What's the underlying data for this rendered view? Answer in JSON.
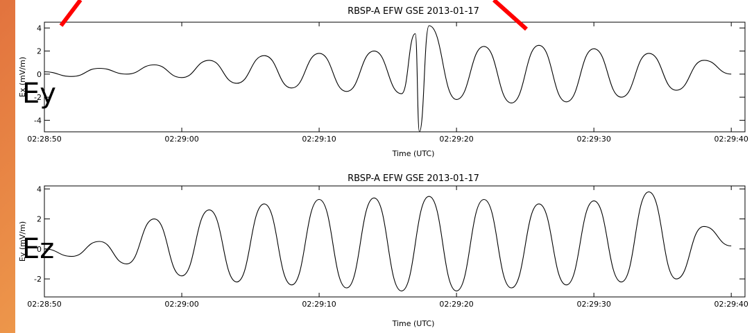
{
  "chart_data": [
    {
      "type": "line",
      "title": "RBSP-A EFW GSE 2013-01-17",
      "xlabel": "Time (UTC)",
      "ylabel": "Ex (mV/m)",
      "overlay_label": "Ey",
      "x_tick_labels": [
        "02:28:50",
        "02:29:00",
        "02:29:10",
        "02:29:20",
        "02:29:30",
        "02:29:40"
      ],
      "ylim": [
        -5,
        4.5
      ],
      "y_ticks": [
        -4,
        -2,
        0,
        2,
        4
      ],
      "series": [
        {
          "x": [
            "02:28:50",
            "02:28:52",
            "02:28:54",
            "02:28:56",
            "02:28:58",
            "02:29:00",
            "02:29:02",
            "02:29:04",
            "02:29:06",
            "02:29:08",
            "02:29:10",
            "02:29:12",
            "02:29:14",
            "02:29:16",
            "02:29:17",
            "02:29:17.3",
            "02:29:18",
            "02:29:20",
            "02:29:22",
            "02:29:24",
            "02:29:26",
            "02:29:28",
            "02:29:30",
            "02:29:32",
            "02:29:34",
            "02:29:36",
            "02:29:38",
            "02:29:40"
          ],
          "y": [
            0.2,
            -0.2,
            0.5,
            0.0,
            0.8,
            -0.3,
            1.2,
            -0.8,
            1.6,
            -1.2,
            1.8,
            -1.5,
            2.0,
            -1.7,
            3.5,
            -5.0,
            4.2,
            -2.2,
            2.4,
            -2.5,
            2.5,
            -2.4,
            2.2,
            -2.0,
            1.8,
            -1.4,
            1.2,
            0.0
          ]
        }
      ]
    },
    {
      "type": "line",
      "title": "RBSP-A EFW GSE 2013-01-17",
      "xlabel": "Time (UTC)",
      "ylabel": "Ey (mV/m)",
      "overlay_label": "Ez",
      "x_tick_labels": [
        "02:28:50",
        "02:29:00",
        "02:29:10",
        "02:29:20",
        "02:29:30",
        "02:29:40"
      ],
      "ylim": [
        -3.2,
        4.2
      ],
      "y_ticks": [
        -2,
        0,
        2,
        4
      ],
      "series": [
        {
          "x": [
            "02:28:50",
            "02:28:52",
            "02:28:54",
            "02:28:56",
            "02:28:58",
            "02:29:00",
            "02:29:02",
            "02:29:04",
            "02:29:06",
            "02:29:08",
            "02:29:10",
            "02:29:12",
            "02:29:14",
            "02:29:16",
            "02:29:18",
            "02:29:20",
            "02:29:22",
            "02:29:24",
            "02:29:26",
            "02:29:28",
            "02:29:30",
            "02:29:32",
            "02:29:34",
            "02:29:36",
            "02:29:38",
            "02:29:40"
          ],
          "y": [
            0.0,
            -0.5,
            0.5,
            -1.0,
            2.0,
            -1.8,
            2.6,
            -2.2,
            3.0,
            -2.4,
            3.3,
            -2.6,
            3.4,
            -2.8,
            3.5,
            -2.8,
            3.3,
            -2.6,
            3.0,
            -2.4,
            3.2,
            -2.2,
            3.8,
            -2.0,
            1.5,
            0.2
          ]
        }
      ]
    }
  ],
  "colors": {
    "trace": "#000000",
    "annotation": "#ff0000",
    "background_gradient": [
      "#e2733e",
      "#f4bb56"
    ]
  }
}
